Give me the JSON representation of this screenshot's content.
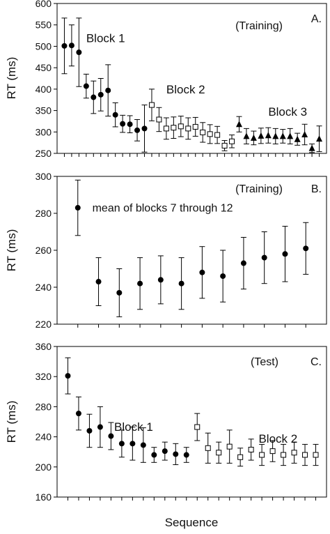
{
  "figure": {
    "xlabel": "Sequence"
  },
  "chart_data": [
    {
      "type": "scatter",
      "panel_letter": "A.",
      "condition": "(Training)",
      "ylabel": "RT (ms)",
      "ylim": [
        250,
        600
      ],
      "yticks": [
        250,
        300,
        350,
        400,
        450,
        500,
        550,
        600
      ],
      "n_ticks": 36,
      "block_labels": [
        {
          "text": "Block 1",
          "x": 4,
          "y": 510
        },
        {
          "text": "Block 2",
          "x": 15,
          "y": 390
        },
        {
          "text": "Block 3",
          "x": 29,
          "y": 338
        }
      ],
      "series": [
        {
          "name": "Block 1",
          "marker": "filled-circle",
          "x": [
            1,
            2,
            3,
            4,
            5,
            6,
            7,
            8,
            9,
            10,
            11,
            12
          ],
          "values": [
            501,
            502,
            486,
            407,
            381,
            387,
            397,
            340,
            319,
            318,
            304,
            308
          ],
          "err": [
            65,
            48,
            80,
            28,
            38,
            38,
            60,
            28,
            20,
            20,
            25,
            55
          ]
        },
        {
          "name": "Block 2",
          "marker": "open-square",
          "x": [
            13,
            14,
            15,
            16,
            17,
            18,
            19,
            20,
            21,
            22,
            23,
            24
          ],
          "values": [
            363,
            329,
            308,
            310,
            313,
            308,
            312,
            299,
            295,
            293,
            268,
            278
          ],
          "err": [
            37,
            28,
            25,
            25,
            24,
            25,
            22,
            23,
            22,
            20,
            12,
            15
          ]
        },
        {
          "name": "Block 3",
          "marker": "filled-triangle",
          "x": [
            25,
            26,
            27,
            28,
            29,
            30,
            31,
            32,
            33,
            34,
            35,
            36
          ],
          "values": [
            318,
            290,
            286,
            291,
            292,
            290,
            290,
            290,
            283,
            294,
            262,
            284
          ],
          "err": [
            18,
            18,
            16,
            18,
            18,
            18,
            16,
            18,
            14,
            24,
            10,
            30
          ]
        }
      ]
    },
    {
      "type": "scatter",
      "panel_letter": "B.",
      "condition": "(Training)",
      "ylabel": "RT (ms)",
      "ylim": [
        220,
        300
      ],
      "yticks": [
        220,
        240,
        260,
        280,
        300
      ],
      "n_ticks": 12,
      "annotation": {
        "text": "mean of blocks 7 through 12",
        "x": 1.7,
        "y": 281
      },
      "series": [
        {
          "name": "",
          "marker": "filled-circle",
          "x": [
            1,
            2,
            3,
            4,
            5,
            6,
            7,
            8,
            9,
            10,
            11,
            12
          ],
          "values": [
            283,
            243,
            237,
            242,
            244,
            242,
            248,
            246,
            253,
            256,
            258,
            261
          ],
          "err": [
            15,
            13,
            13,
            14,
            13,
            14,
            14,
            14,
            14,
            14,
            15,
            14
          ]
        }
      ]
    },
    {
      "type": "scatter",
      "panel_letter": "C.",
      "condition": "(Test)",
      "ylabel": "RT (ms)",
      "ylim": [
        160,
        360
      ],
      "yticks": [
        160,
        200,
        240,
        280,
        320,
        360
      ],
      "n_ticks": 24,
      "block_labels": [
        {
          "text": "Block 1",
          "x": 5.3,
          "y": 248
        },
        {
          "text": "Block 2",
          "x": 18.7,
          "y": 232
        }
      ],
      "series": [
        {
          "name": "Block 1",
          "marker": "filled-circle",
          "x": [
            1,
            2,
            3,
            4,
            5,
            6,
            7,
            8,
            9,
            10,
            11,
            12
          ],
          "values": [
            321,
            271,
            248,
            253,
            241,
            231,
            231,
            229,
            216,
            221,
            217,
            216
          ],
          "err": [
            24,
            22,
            22,
            27,
            18,
            18,
            22,
            23,
            10,
            12,
            14,
            10
          ]
        },
        {
          "name": "Block 2",
          "marker": "open-square",
          "x": [
            13,
            14,
            15,
            16,
            17,
            18,
            19,
            20,
            21,
            22,
            23,
            24
          ],
          "values": [
            253,
            225,
            219,
            227,
            213,
            223,
            216,
            221,
            216,
            219,
            216,
            216
          ],
          "err": [
            18,
            20,
            14,
            22,
            12,
            14,
            14,
            14,
            14,
            14,
            14,
            14
          ]
        }
      ]
    }
  ]
}
